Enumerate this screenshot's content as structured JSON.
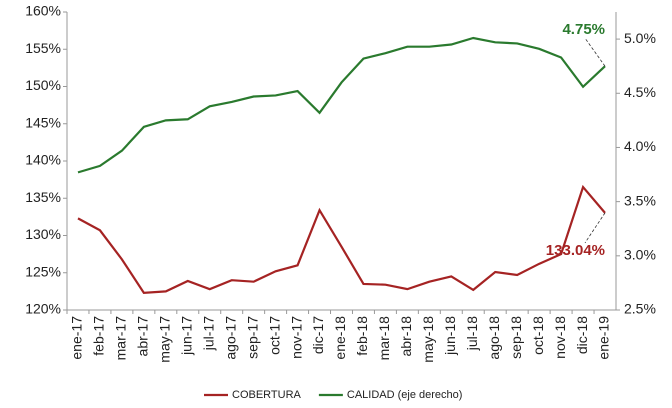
{
  "chart_data": {
    "type": "line",
    "categories": [
      "ene-17",
      "feb-17",
      "mar-17",
      "abr-17",
      "may-17",
      "jun-17",
      "jul-17",
      "ago-17",
      "sep-17",
      "oct-17",
      "nov-17",
      "dic-17",
      "ene-18",
      "feb-18",
      "mar-18",
      "abr-18",
      "may-18",
      "jun-18",
      "jul-18",
      "ago-18",
      "sep-18",
      "oct-18",
      "nov-18",
      "dic-18",
      "ene-19"
    ],
    "series": [
      {
        "name": "COBERTURA",
        "color": "#a52323",
        "axis": "y",
        "values": [
          132.3,
          130.7,
          126.8,
          122.3,
          122.5,
          123.9,
          122.8,
          124.0,
          123.8,
          125.2,
          126.0,
          133.4,
          128.5,
          123.5,
          123.4,
          122.8,
          123.8,
          124.5,
          122.7,
          125.1,
          124.7,
          126.2,
          127.5,
          136.5,
          133.04
        ],
        "value_labels": [
          null,
          null,
          null,
          null,
          null,
          null,
          null,
          null,
          null,
          null,
          null,
          null,
          null,
          null,
          null,
          null,
          null,
          null,
          null,
          null,
          null,
          null,
          null,
          null,
          "133.04%"
        ]
      },
      {
        "name": "CALIDAD (eje derecho)",
        "color": "#2a7a2e",
        "axis": "y2",
        "values": [
          3.77,
          3.83,
          3.97,
          4.19,
          4.25,
          4.26,
          4.38,
          4.42,
          4.47,
          4.48,
          4.52,
          4.32,
          4.6,
          4.82,
          4.87,
          4.93,
          4.93,
          4.95,
          5.01,
          4.97,
          4.96,
          4.91,
          4.83,
          4.56,
          4.75
        ],
        "value_labels": [
          null,
          null,
          null,
          null,
          null,
          null,
          null,
          null,
          null,
          null,
          null,
          null,
          null,
          null,
          null,
          null,
          null,
          null,
          null,
          null,
          null,
          null,
          null,
          null,
          "4.75%"
        ]
      }
    ],
    "ylim": [
      120,
      160
    ],
    "yticks": [
      {
        "value": 120,
        "label": "120%"
      },
      {
        "value": 125,
        "label": "125%"
      },
      {
        "value": 130,
        "label": "130%"
      },
      {
        "value": 135,
        "label": "135%"
      },
      {
        "value": 140,
        "label": "140%"
      },
      {
        "value": 145,
        "label": "145%"
      },
      {
        "value": 150,
        "label": "150%"
      },
      {
        "value": 155,
        "label": "155%"
      },
      {
        "value": 160,
        "label": "160%"
      }
    ],
    "y2lim": [
      2.5,
      5.25
    ],
    "y2ticks": [
      {
        "value": 2.5,
        "label": "2.5%"
      },
      {
        "value": 3.0,
        "label": "3.0%"
      },
      {
        "value": 3.5,
        "label": "3.5%"
      },
      {
        "value": 4.0,
        "label": "4.0%"
      },
      {
        "value": 4.5,
        "label": "4.5%"
      },
      {
        "value": 5.0,
        "label": "5.0%"
      }
    ],
    "grid": false,
    "legend": "bottom"
  }
}
